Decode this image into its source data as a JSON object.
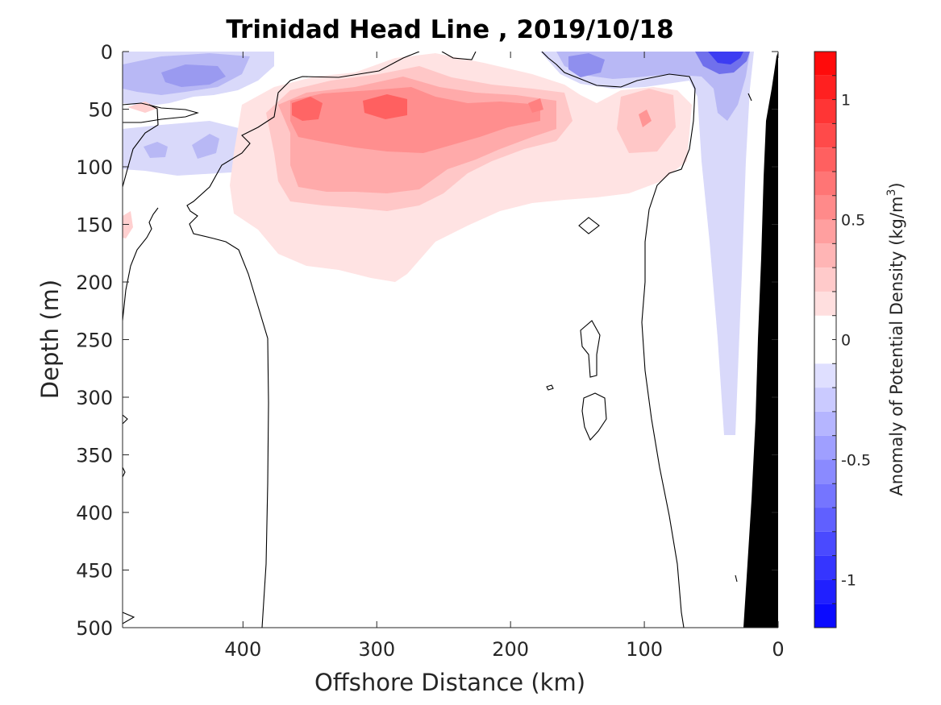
{
  "chart_data": {
    "type": "heatmap",
    "title": "Trinidad Head Line , 2019/10/18",
    "xlabel": "Offshore Distance (km)",
    "ylabel": "Depth (m)",
    "xlim": [
      490,
      0
    ],
    "ylim": [
      0,
      500
    ],
    "x_reversed": true,
    "y_reversed": true,
    "xticks": [
      400,
      300,
      200,
      100,
      0
    ],
    "yticks": [
      0,
      50,
      100,
      150,
      200,
      250,
      300,
      350,
      400,
      450,
      500
    ],
    "colorbar": {
      "label": "Anomaly of Potential Density (kg/m3)",
      "label_main": "Anomaly of Potential Density (kg/m",
      "label_sup": "3",
      "label_close": ")",
      "range": [
        -1.2,
        1.2
      ],
      "step": 0.1,
      "ticks": [
        1,
        0.5,
        0,
        -0.5,
        -1
      ],
      "tick_labels": [
        "1",
        "0.5",
        "0",
        "-0.5",
        "-1"
      ],
      "colormap": "blue-white-red"
    },
    "bathymetry_color": "#000000",
    "contour_level": 0,
    "features": [
      {
        "type": "positive",
        "x": 290,
        "y": 55,
        "value": 0.75
      },
      {
        "type": "positive",
        "x": 350,
        "y": 50,
        "value": 0.7
      },
      {
        "type": "positive",
        "x": 180,
        "y": 45,
        "value": 0.5
      },
      {
        "type": "positive",
        "x": 100,
        "y": 55,
        "value": 0.45
      },
      {
        "type": "negative",
        "x": 440,
        "y": 20,
        "value": -0.4
      },
      {
        "type": "negative",
        "x": 35,
        "y": 5,
        "value": -0.9
      },
      {
        "type": "negative",
        "x": 150,
        "y": 10,
        "value": -0.5
      }
    ]
  }
}
